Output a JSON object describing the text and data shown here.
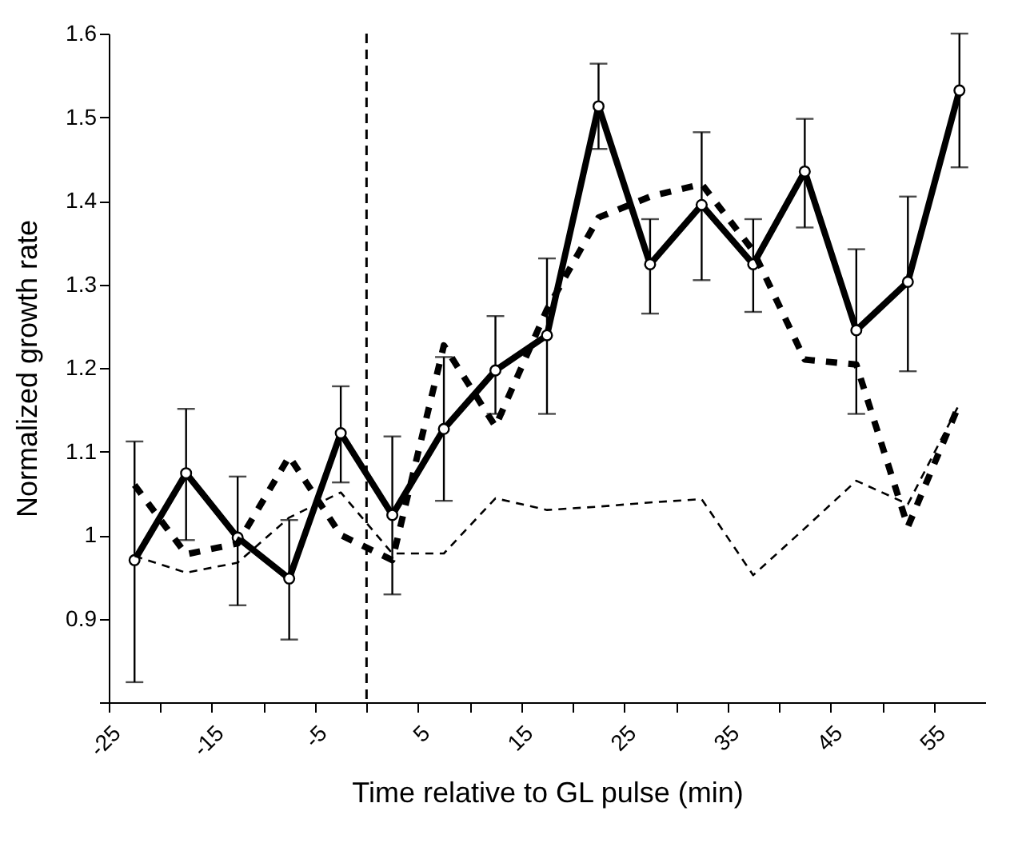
{
  "chart_data": {
    "type": "line",
    "xlabel": "Time relative to GL pulse (min)",
    "ylabel": "Normalized growth rate",
    "x": [
      -22.5,
      -17.5,
      -12.5,
      -7.5,
      -2.5,
      2.5,
      7.5,
      12.5,
      17.5,
      22.5,
      27.5,
      32.5,
      37.5,
      42.5,
      47.5,
      52.5,
      57.5
    ],
    "series": [
      {
        "color": "#000000",
        "line_style": "solid",
        "marker": "circle",
        "values": [
          0.97,
          1.074,
          0.997,
          0.948,
          1.122,
          1.024,
          1.127,
          1.197,
          1.239,
          1.513,
          1.324,
          1.395,
          1.324,
          1.435,
          1.245,
          1.303,
          1.532
        ],
        "errors": [
          [
            0.824,
            1.112
          ],
          [
            0.994,
            1.151
          ],
          [
            0.916,
            1.07
          ],
          [
            0.875,
            1.018
          ],
          [
            1.063,
            1.178
          ],
          [
            0.929,
            1.118
          ],
          [
            1.041,
            1.213
          ],
          [
            1.145,
            1.262
          ],
          [
            1.145,
            1.331
          ],
          [
            1.462,
            1.564
          ],
          [
            1.265,
            1.378
          ],
          [
            1.305,
            1.482
          ],
          [
            1.267,
            1.378
          ],
          [
            1.368,
            1.498
          ],
          [
            1.145,
            1.342
          ],
          [
            1.196,
            1.405
          ],
          [
            1.44,
            1.6
          ]
        ]
      },
      {
        "color": "#000000",
        "line_style": "dashed",
        "marker": "none",
        "values": [
          1.06,
          0.977,
          0.99,
          1.094,
          1.0,
          0.97,
          1.227,
          1.13,
          1.27,
          1.38,
          1.405,
          1.42,
          1.34,
          1.21,
          1.204,
          1.01,
          1.157
        ]
      },
      {
        "color": "#000000",
        "line_style": "dashed",
        "marker": "none",
        "values": [
          0.975,
          0.955,
          0.967,
          1.021,
          1.051,
          0.978,
          0.978,
          1.044,
          1.03,
          1.034,
          1.039,
          1.043,
          0.952,
          1.008,
          1.065,
          1.037,
          1.157
        ]
      }
    ],
    "xlim": [
      -25,
      60
    ],
    "xticks": [
      -25,
      {
        "value": -20,
        "label": null
      },
      -15,
      {
        "value": -10,
        "label": null
      },
      -5,
      {
        "value": 0,
        "label": null
      },
      5,
      {
        "value": 10,
        "label": null
      },
      15,
      {
        "value": 20,
        "label": null
      },
      25,
      {
        "value": 30,
        "label": null
      },
      35,
      {
        "value": 40,
        "label": null
      },
      45,
      {
        "value": 50,
        "label": null
      },
      55
    ],
    "ylim": [
      0.8,
      1.6
    ],
    "yticks": [
      {
        "value": 0.8,
        "label": null
      },
      0.9,
      1,
      1.1,
      1.2,
      1.3,
      1.4,
      1.5,
      1.6
    ],
    "ref_lines": [
      {
        "axis": "x",
        "value": 0,
        "line_style": "dashed",
        "color": "#000000"
      }
    ],
    "grid": false
  }
}
